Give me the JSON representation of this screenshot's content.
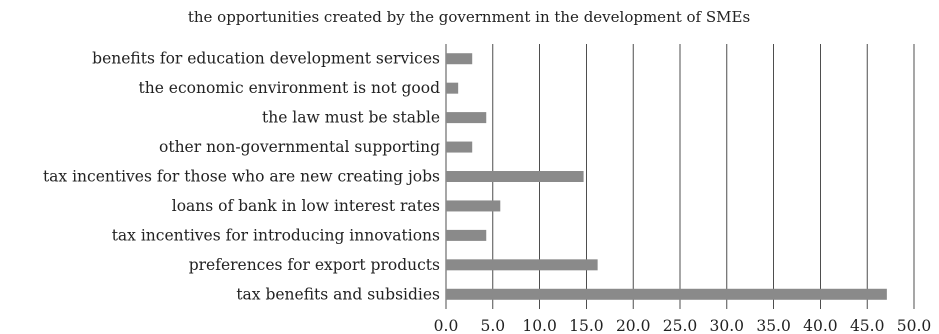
{
  "chart_data": {
    "type": "bar",
    "orientation": "horizontal",
    "title": "the opportunities created by the government in the development of SMEs",
    "categories": [
      "benefits for education development services",
      "the economic environment is not good",
      "the law must be stable",
      "other non-governmental supporting",
      "tax incentives for those who are new creating jobs",
      "loans of bank in low interest rates",
      "tax incentives for introducing innovations",
      "preferences for export products",
      "tax benefits and subsidies"
    ],
    "values": [
      2.8,
      1.3,
      4.3,
      2.8,
      14.7,
      5.8,
      4.3,
      16.2,
      47.1
    ],
    "xlim": [
      0,
      50
    ],
    "xticks": [
      "0.0",
      "5.0",
      "10.0",
      "15.0",
      "20.0",
      "25.0",
      "30.0",
      "35.0",
      "40.0",
      "45.0",
      "50.0"
    ],
    "grid": "vertical",
    "bar_color": "#8a8a8a"
  }
}
